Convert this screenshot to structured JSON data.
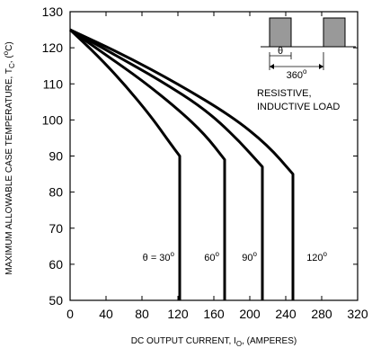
{
  "chart_data": {
    "type": "line",
    "xlabel": "DC OUTPUT CURRENT, I",
    "xlabel_sub": "O",
    "xlabel_suffix": ", (AMPERES)",
    "ylabel": "MAXIMUM ALLOWABLE CASE TEMPERATURE, T",
    "ylabel_sub": "C",
    "ylabel_suffix": ", (",
    "ylabel_unit_sup": "o",
    "ylabel_unit": "C)",
    "xlim": [
      0,
      320
    ],
    "ylim": [
      50,
      130
    ],
    "xticks": [
      0,
      40,
      80,
      120,
      160,
      200,
      240,
      280,
      320
    ],
    "yticks": [
      50,
      60,
      70,
      80,
      90,
      100,
      110,
      120,
      130
    ],
    "grid": false,
    "series": [
      {
        "name": "θ = 30",
        "name_sup": "o",
        "points": [
          [
            0,
            125
          ],
          [
            30,
            118
          ],
          [
            60,
            110
          ],
          [
            90,
            101
          ],
          [
            110,
            94
          ],
          [
            122,
            90
          ],
          [
            122,
            50
          ]
        ]
      },
      {
        "name": "60",
        "name_sup": "o",
        "points": [
          [
            0,
            125
          ],
          [
            40,
            118
          ],
          [
            80,
            111
          ],
          [
            120,
            103
          ],
          [
            150,
            96
          ],
          [
            172,
            89
          ],
          [
            172,
            50
          ]
        ]
      },
      {
        "name": "90",
        "name_sup": "o",
        "points": [
          [
            0,
            125
          ],
          [
            50,
            118
          ],
          [
            100,
            111
          ],
          [
            150,
            103
          ],
          [
            185,
            95
          ],
          [
            214,
            87
          ],
          [
            214,
            50
          ]
        ]
      },
      {
        "name": "120",
        "name_sup": "o",
        "points": [
          [
            0,
            125
          ],
          [
            60,
            118
          ],
          [
            120,
            110
          ],
          [
            180,
            101
          ],
          [
            220,
            93
          ],
          [
            248,
            85
          ],
          [
            248,
            50
          ]
        ]
      }
    ],
    "annotation": {
      "theta_label": "θ",
      "period_label": "360",
      "period_sup": "o",
      "load_line1": "RESISTIVE,",
      "load_line2": "INDUCTIVE LOAD"
    },
    "colors": {
      "line": "#000000",
      "pulse_fill": "#999999"
    }
  }
}
